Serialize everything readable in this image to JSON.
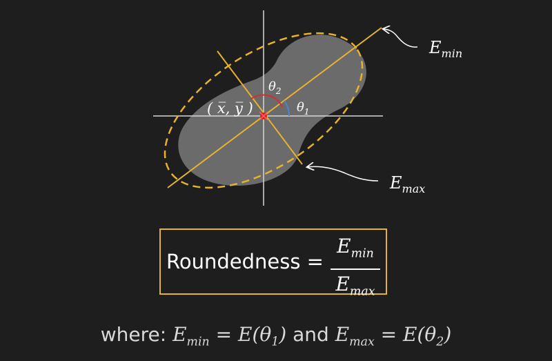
{
  "labels": {
    "e_min": "E",
    "e_min_sub": "min",
    "e_max": "E",
    "e_max_sub": "max",
    "centroid": "( x̅, y̅ )",
    "theta1": "θ",
    "theta1_sub": "1",
    "theta2": "θ",
    "theta2_sub": "2"
  },
  "formula": {
    "lhs": "Roundedness =",
    "numerator": "E",
    "numerator_sub": "min",
    "denominator": "E",
    "denominator_sub": "max"
  },
  "where_line": {
    "prefix": "where:",
    "part1": "E",
    "part1_sub": "min",
    "part1_rhs": " = E(θ",
    "part1_arg_sub": "1",
    "part1_close": ")",
    "conj": "and",
    "part2": "E",
    "part2_sub": "max",
    "part2_rhs": " = E(θ",
    "part2_arg_sub": "2",
    "part2_close": ")"
  },
  "colors": {
    "background": "#1e1e1e",
    "axis_line": "#e8b32c",
    "box_border": "#e8b32c",
    "shape_fill": "#707070",
    "centroid_marker": "#e02020",
    "theta1_arc": "#4a86c8",
    "theta2_arc": "#d03030"
  }
}
